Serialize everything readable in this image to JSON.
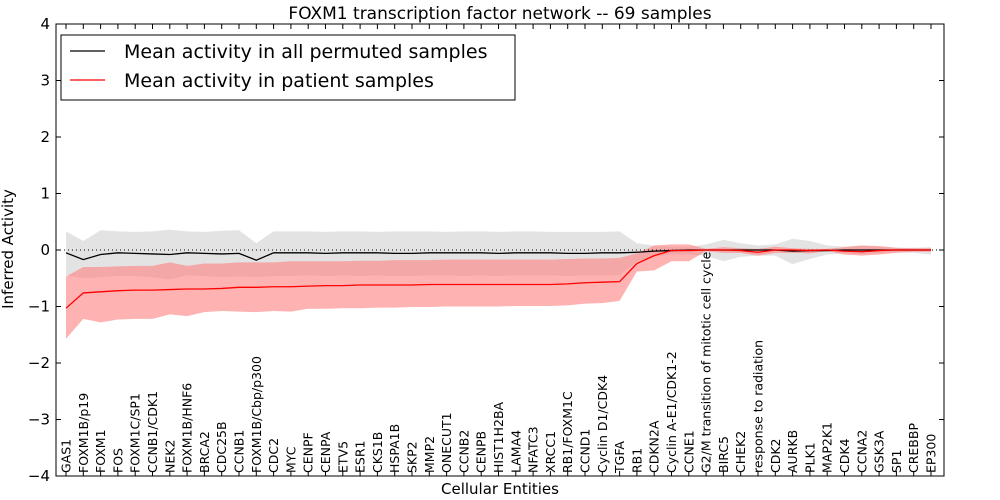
{
  "chart_data": {
    "type": "line",
    "title": "FOXM1 transcription factor network -- 69 samples",
    "xlabel": "Cellular Entities",
    "ylabel": "Inferred Activity",
    "ylim": [
      -4,
      4
    ],
    "yticks": [
      "4",
      "3",
      "2",
      "1",
      "0",
      "−1",
      "−2",
      "−3",
      "−4"
    ],
    "ytick_values": [
      4,
      3,
      2,
      1,
      0,
      -1,
      -2,
      -3,
      -4
    ],
    "reference_line": 0,
    "legend_position": "top-left",
    "categories": [
      "GAS1",
      "FOXM1B/p19",
      "FOXM1",
      "FOS",
      "FOXM1C/SP1",
      "CCNB1/CDK1",
      "NEK2",
      "FOXM1B/HNF6",
      "BRCA2",
      "CDC25B",
      "CCNB1",
      "FOXM1B/Cbp/p300",
      "CDC2",
      "MYC",
      "CENPF",
      "CENPA",
      "ETV5",
      "ESR1",
      "CKS1B",
      "HSPA1B",
      "SKP2",
      "MMP2",
      "ONECUT1",
      "CCNB2",
      "CENPB",
      "HIST1H2BA",
      "LAMA4",
      "NFATC3",
      "XRCC1",
      "RB1/FOXM1C",
      "CCND1",
      "Cyclin D1/CDK4",
      "TGFA",
      "RB1",
      "CDKN2A",
      "Cyclin A-E1/CDK1-2",
      "CCNE1",
      "G2/M transition of mitotic cell cycle",
      "BIRC5",
      "CHEK2",
      "response to radiation",
      "CDK2",
      "AURKB",
      "PLK1",
      "MAP2K1",
      "CDK4",
      "CCNA2",
      "GSK3A",
      "SP1",
      "CREBBP",
      "EP300"
    ],
    "series": [
      {
        "name": "Mean activity in all permuted samples",
        "color": "#000000",
        "band_color": "#cccccc",
        "values": [
          -0.05,
          -0.17,
          -0.08,
          -0.05,
          -0.06,
          -0.07,
          -0.08,
          -0.05,
          -0.06,
          -0.07,
          -0.06,
          -0.18,
          -0.05,
          -0.05,
          -0.05,
          -0.06,
          -0.05,
          -0.05,
          -0.05,
          -0.06,
          -0.06,
          -0.05,
          -0.05,
          -0.05,
          -0.05,
          -0.06,
          -0.05,
          -0.05,
          -0.05,
          -0.06,
          -0.06,
          -0.05,
          -0.05,
          -0.04,
          -0.02,
          -0.01,
          0.0,
          0.0,
          0.0,
          0.0,
          0.0,
          0.0,
          -0.02,
          -0.01,
          -0.01,
          0.0,
          0.0,
          0.0,
          0.0,
          0.0,
          0.0
        ],
        "upper": [
          0.33,
          0.16,
          0.35,
          0.33,
          0.32,
          0.33,
          0.36,
          0.33,
          0.32,
          0.34,
          0.35,
          0.12,
          0.33,
          0.33,
          0.33,
          0.32,
          0.33,
          0.33,
          0.32,
          0.33,
          0.33,
          0.33,
          0.32,
          0.33,
          0.33,
          0.32,
          0.33,
          0.33,
          0.32,
          0.32,
          0.32,
          0.32,
          0.33,
          0.12,
          0.08,
          0.06,
          0.06,
          0.1,
          0.18,
          0.12,
          0.08,
          0.1,
          0.2,
          0.16,
          0.08,
          0.06,
          0.08,
          0.05,
          0.04,
          0.04,
          0.05
        ],
        "lower": [
          -0.45,
          -0.5,
          -0.48,
          -0.46,
          -0.46,
          -0.48,
          -0.52,
          -0.45,
          -0.46,
          -0.48,
          -0.47,
          -0.48,
          -0.46,
          -0.46,
          -0.45,
          -0.46,
          -0.45,
          -0.46,
          -0.45,
          -0.46,
          -0.46,
          -0.45,
          -0.45,
          -0.46,
          -0.45,
          -0.46,
          -0.45,
          -0.45,
          -0.45,
          -0.46,
          -0.45,
          -0.45,
          -0.45,
          -0.2,
          -0.12,
          -0.08,
          -0.08,
          -0.1,
          -0.2,
          -0.12,
          -0.1,
          -0.1,
          -0.25,
          -0.16,
          -0.08,
          -0.06,
          -0.08,
          -0.05,
          -0.04,
          -0.05,
          -0.08
        ]
      },
      {
        "name": "Mean activity in patient samples",
        "color": "#ff0000",
        "band_color": "#ff7f7f",
        "values": [
          -1.03,
          -0.76,
          -0.74,
          -0.72,
          -0.71,
          -0.71,
          -0.7,
          -0.69,
          -0.69,
          -0.68,
          -0.66,
          -0.66,
          -0.65,
          -0.65,
          -0.64,
          -0.63,
          -0.63,
          -0.62,
          -0.62,
          -0.62,
          -0.62,
          -0.61,
          -0.61,
          -0.61,
          -0.61,
          -0.61,
          -0.61,
          -0.61,
          -0.61,
          -0.6,
          -0.58,
          -0.57,
          -0.56,
          -0.24,
          -0.1,
          -0.01,
          -0.01,
          0.0,
          0.0,
          -0.01,
          -0.04,
          0.0,
          0.0,
          -0.01,
          0.0,
          -0.02,
          -0.03,
          -0.01,
          0.0,
          0.0,
          0.0
        ],
        "upper": [
          -0.47,
          -0.3,
          -0.3,
          -0.29,
          -0.28,
          -0.28,
          -0.22,
          -0.28,
          -0.24,
          -0.24,
          -0.22,
          -0.22,
          -0.22,
          -0.2,
          -0.2,
          -0.2,
          -0.2,
          -0.19,
          -0.19,
          -0.18,
          -0.18,
          -0.18,
          -0.17,
          -0.17,
          -0.17,
          -0.17,
          -0.17,
          -0.17,
          -0.17,
          -0.16,
          -0.15,
          -0.15,
          -0.14,
          -0.06,
          0.08,
          0.1,
          0.1,
          0.02,
          0.05,
          0.03,
          0.02,
          0.06,
          0.03,
          0.02,
          0.02,
          0.05,
          0.08,
          0.07,
          0.04,
          0.03,
          0.03
        ],
        "lower": [
          -1.57,
          -1.22,
          -1.28,
          -1.23,
          -1.22,
          -1.22,
          -1.14,
          -1.17,
          -1.1,
          -1.08,
          -1.09,
          -1.1,
          -1.08,
          -1.09,
          -1.04,
          -1.04,
          -1.03,
          -1.03,
          -1.02,
          -1.02,
          -1.01,
          -1.01,
          -1.0,
          -1.0,
          -1.0,
          -1.0,
          -0.99,
          -0.99,
          -0.99,
          -0.98,
          -0.95,
          -0.94,
          -0.9,
          -0.38,
          -0.36,
          -0.2,
          -0.2,
          -0.02,
          -0.05,
          -0.05,
          -0.1,
          -0.05,
          -0.05,
          -0.06,
          -0.02,
          -0.08,
          -0.1,
          -0.08,
          -0.05,
          -0.03,
          -0.03
        ]
      }
    ]
  }
}
